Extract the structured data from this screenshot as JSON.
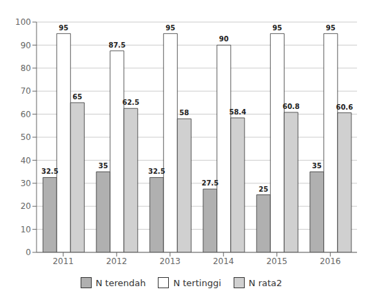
{
  "chart_data": {
    "type": "bar",
    "categories": [
      "2011",
      "2012",
      "2013",
      "2014",
      "2015",
      "2016"
    ],
    "series": [
      {
        "name": "N terendah",
        "color": "#b0b0b0",
        "values": [
          32.5,
          35,
          32.5,
          27.5,
          25,
          35
        ]
      },
      {
        "name": "N tertinggi",
        "color": "#ffffff",
        "values": [
          95,
          87.5,
          95,
          90,
          95,
          95
        ]
      },
      {
        "name": "N rata2",
        "color": "#d0d0d0",
        "values": [
          65,
          62.5,
          58,
          58.4,
          60.8,
          60.6
        ]
      }
    ],
    "ylim": [
      0,
      100
    ],
    "yticks": [
      0,
      10,
      20,
      30,
      40,
      50,
      60,
      70,
      80,
      90,
      100
    ],
    "grid": true,
    "legend": "bottom",
    "data_labels": true
  }
}
